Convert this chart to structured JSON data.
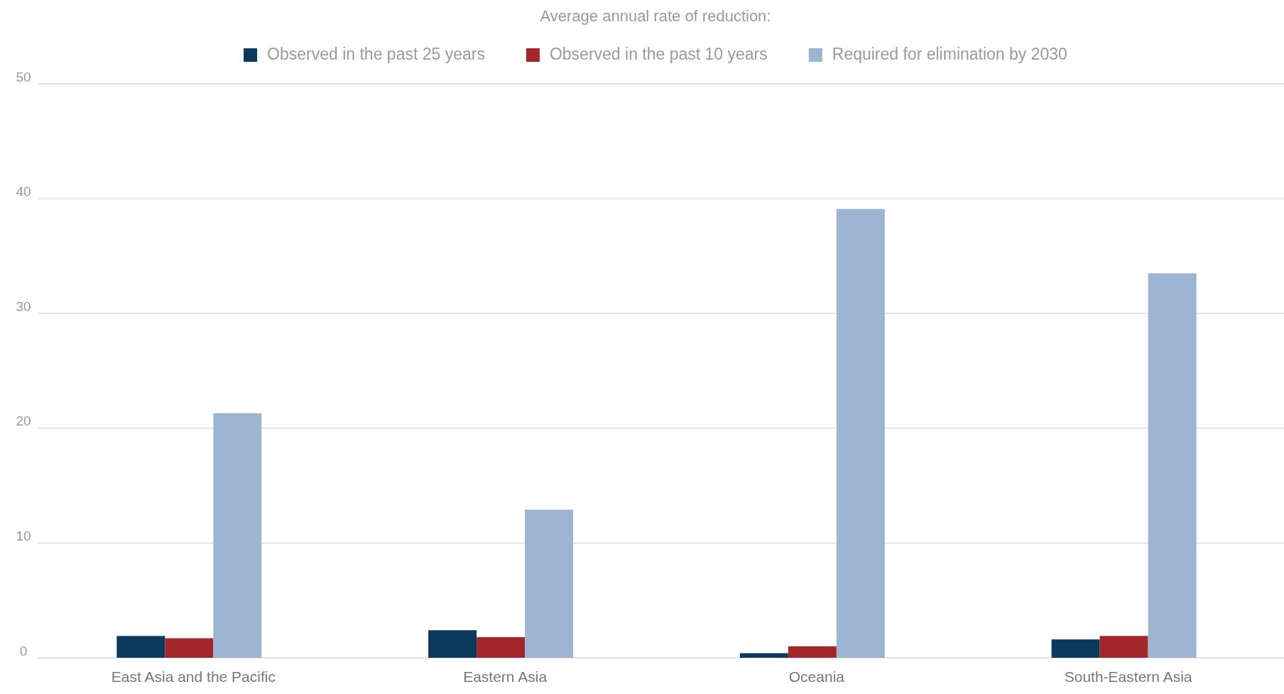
{
  "chart_data": {
    "type": "bar",
    "legend_title": "Average annual rate of reduction:",
    "categories": [
      "East Asia and the Pacific",
      "Eastern Asia",
      "Oceania",
      "South-Eastern Asia"
    ],
    "series": [
      {
        "name": "Observed in the past 25 years",
        "color": "#0b3a5e",
        "values": [
          1.9,
          2.4,
          0.4,
          1.6
        ]
      },
      {
        "name": "Observed in the past 10 years",
        "color": "#a3262a",
        "values": [
          1.7,
          1.8,
          1.0,
          1.9
        ]
      },
      {
        "name": "Required for elimination by 2030",
        "color": "#9db5d3",
        "values": [
          21.3,
          12.9,
          39.1,
          33.5
        ]
      }
    ],
    "ylim": [
      0,
      50
    ],
    "yticks": [
      0,
      10,
      20,
      30,
      40,
      50
    ],
    "grid": "y",
    "legend": "top"
  }
}
